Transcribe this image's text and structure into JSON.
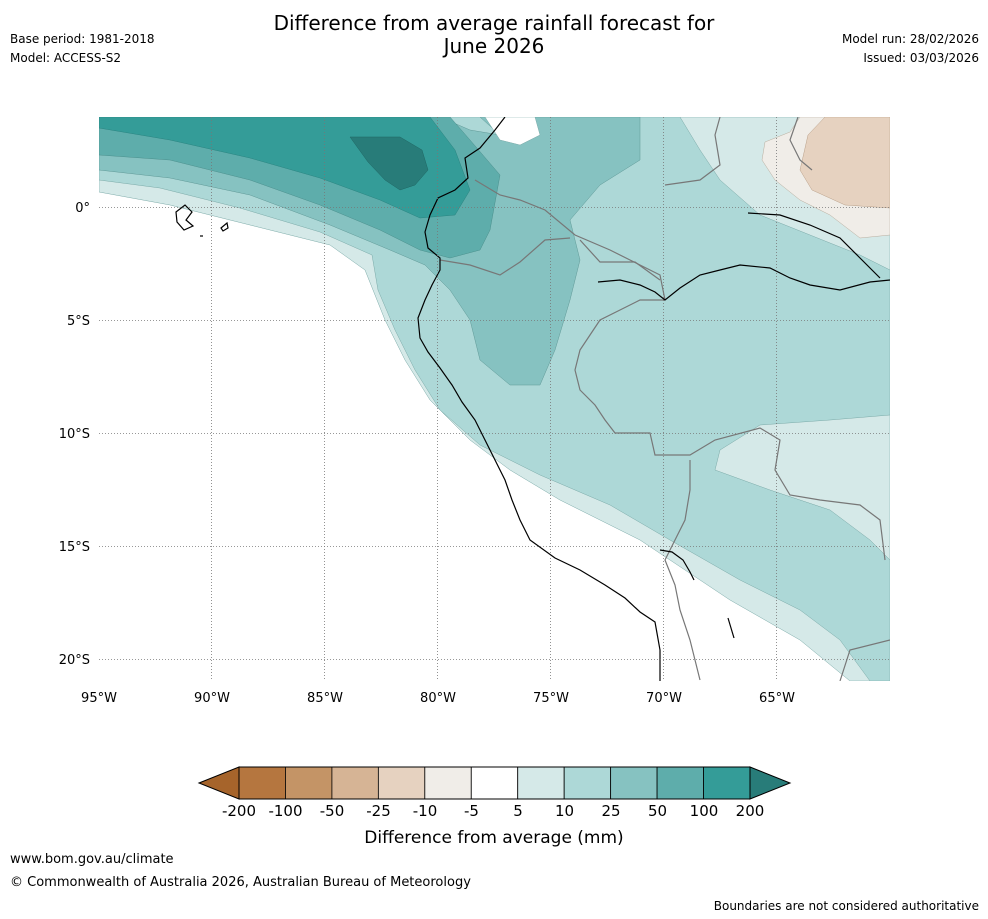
{
  "header": {
    "title_line1": "Difference from average rainfall forecast for",
    "title_line2": "June 2026",
    "base_period": "Base period: 1981-2018",
    "model": "Model: ACCESS-S2",
    "model_run": "Model run: 28/02/2026",
    "issued": "Issued: 03/03/2026"
  },
  "map": {
    "lon_labels": [
      "95°W",
      "90°W",
      "85°W",
      "80°W",
      "75°W",
      "70°W",
      "65°W"
    ],
    "lat_labels": [
      "0°",
      "5°S",
      "10°S",
      "15°S",
      "20°S"
    ],
    "extent": {
      "lon_min": -95,
      "lon_max": -60,
      "lat_min": -21,
      "lat_max": 4
    }
  },
  "legend": {
    "title": "Difference from average (mm)",
    "tick_labels": [
      "-200",
      "-100",
      "-50",
      "-25",
      "-10",
      "-5",
      "5",
      "10",
      "25",
      "50",
      "100",
      "200"
    ],
    "colors": [
      "#a6642b",
      "#b5763f",
      "#c49466",
      "#d6b495",
      "#e6d2c0",
      "#f0ede8",
      "#ffffff",
      "#d5e9e8",
      "#add8d7",
      "#86c2c1",
      "#5eadab",
      "#349c98",
      "#287c79"
    ]
  },
  "footer": {
    "url": "www.bom.gov.au/climate",
    "copyright": "© Commonwealth of Australia 2026, Australian Bureau of Meteorology",
    "disclaimer": "Boundaries are not considered authoritative"
  }
}
